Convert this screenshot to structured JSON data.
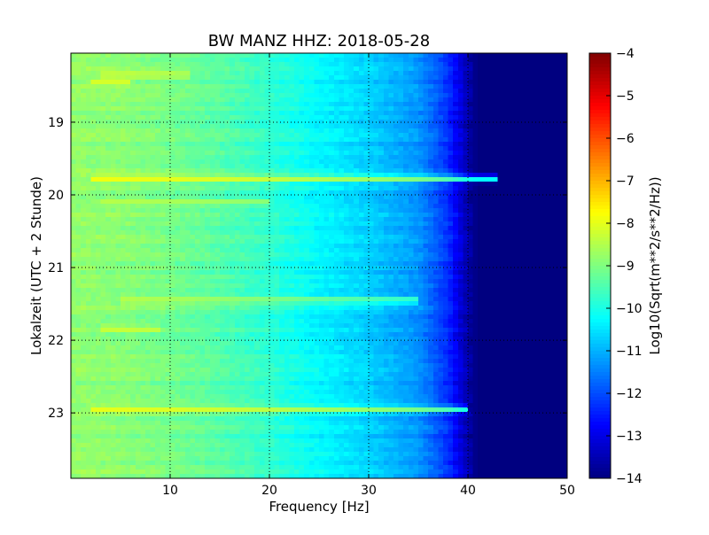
{
  "chart_data": {
    "type": "heatmap",
    "title": "BW MANZ HHZ: 2018-05-28",
    "xlabel": "Frequency [Hz]",
    "ylabel": "Lokalzeit (UTC + 2 Stunde)",
    "xlim": [
      0,
      50
    ],
    "ylim": [
      18.05,
      23.9
    ],
    "x_ticks": [
      {
        "value": 10,
        "label": "10"
      },
      {
        "value": 20,
        "label": "20"
      },
      {
        "value": 30,
        "label": "30"
      },
      {
        "value": 40,
        "label": "40"
      },
      {
        "value": 50,
        "label": "50"
      }
    ],
    "y_ticks": [
      {
        "value": 19,
        "label": "19"
      },
      {
        "value": 20,
        "label": "20"
      },
      {
        "value": 21,
        "label": "21"
      },
      {
        "value": 22,
        "label": "22"
      },
      {
        "value": 23,
        "label": "23"
      }
    ],
    "y_inverted": true,
    "grid": true,
    "colormap": "jet",
    "colorbar": {
      "label": "Log10(Sqrt(m**2/s**2/Hz))",
      "range": [
        -14,
        -4
      ],
      "ticks": [
        {
          "value": -4,
          "label": "−4"
        },
        {
          "value": -5,
          "label": "−5"
        },
        {
          "value": -6,
          "label": "−6"
        },
        {
          "value": -7,
          "label": "−7"
        },
        {
          "value": -8,
          "label": "−8"
        },
        {
          "value": -9,
          "label": "−9"
        },
        {
          "value": -10,
          "label": "−10"
        },
        {
          "value": -11,
          "label": "−11"
        },
        {
          "value": -12,
          "label": "−12"
        },
        {
          "value": -13,
          "label": "−13"
        },
        {
          "value": -14,
          "label": "−14"
        }
      ]
    },
    "spectrum_profile": {
      "frequency_hz": [
        0,
        5,
        10,
        15,
        20,
        25,
        30,
        35,
        38,
        40,
        41,
        50
      ],
      "level": [
        -8.8,
        -8.9,
        -9.1,
        -9.4,
        -9.8,
        -10.3,
        -10.7,
        -11.3,
        -12.3,
        -13.6,
        -14,
        -14
      ]
    },
    "events": [
      {
        "time": 19.78,
        "f_from": 2,
        "f_to": 43,
        "peak": -7.6
      },
      {
        "time": 22.95,
        "f_from": 2,
        "f_to": 40,
        "peak": -7.8
      },
      {
        "time": 18.35,
        "f_from": 3,
        "f_to": 12,
        "peak": -8.2
      },
      {
        "time": 18.45,
        "f_from": 2,
        "f_to": 6,
        "peak": -8.1
      },
      {
        "time": 21.45,
        "f_from": 5,
        "f_to": 35,
        "peak": -8.5
      },
      {
        "time": 21.85,
        "f_from": 3,
        "f_to": 9,
        "peak": -8.3
      },
      {
        "time": 20.1,
        "f_from": 3,
        "f_to": 20,
        "peak": -8.6
      }
    ]
  }
}
